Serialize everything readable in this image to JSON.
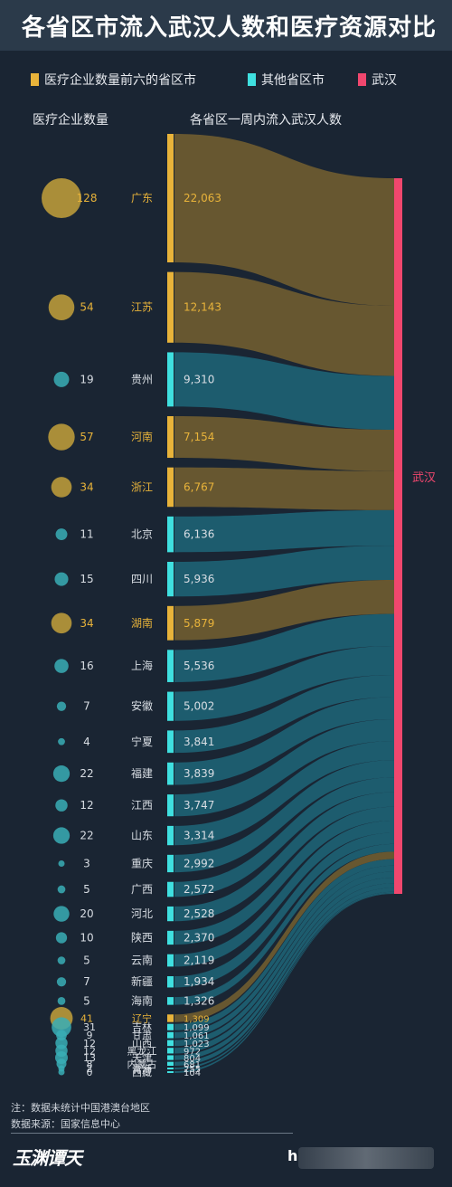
{
  "title": "各省区市流入武汉人数和医疗资源对比",
  "legend": [
    {
      "label": "医疗企业数量前六的省区市",
      "color": "#e8b33a"
    },
    {
      "label": "其他省区市",
      "color": "#3fe0e0"
    },
    {
      "label": "武汉",
      "color": "#f0476e"
    }
  ],
  "headers": {
    "medical": "医疗企业数量",
    "inflow": "各省区一周内流入武汉人数"
  },
  "target_label": "武汉",
  "notes": {
    "note": "注：数据未统计中国港澳台地区",
    "source": "数据来源：国家信息中心"
  },
  "brand": "玉渊谭天",
  "footer_fragment": "h",
  "colors": {
    "background": "#1a2533",
    "top6": "#e8b33a",
    "top6_flow": "#6b5a30",
    "other": "#3fe0e0",
    "other_flow": "#1e5f72",
    "wuhan": "#f0476e",
    "text": "#d8dde3"
  },
  "chart_data": {
    "type": "sankey",
    "columns": [
      "医疗企业数量",
      "省区市",
      "各省区一周内流入武汉人数"
    ],
    "target": "武汉",
    "rows": [
      {
        "province": "广东",
        "medical": 128,
        "inflow": 22063,
        "top6": true
      },
      {
        "province": "江苏",
        "medical": 54,
        "inflow": 12143,
        "top6": true
      },
      {
        "province": "贵州",
        "medical": 19,
        "inflow": 9310,
        "top6": false
      },
      {
        "province": "河南",
        "medical": 57,
        "inflow": 7154,
        "top6": true
      },
      {
        "province": "浙江",
        "medical": 34,
        "inflow": 6767,
        "top6": true
      },
      {
        "province": "北京",
        "medical": 11,
        "inflow": 6136,
        "top6": false
      },
      {
        "province": "四川",
        "medical": 15,
        "inflow": 5936,
        "top6": false
      },
      {
        "province": "湖南",
        "medical": 34,
        "inflow": 5879,
        "top6": true
      },
      {
        "province": "上海",
        "medical": 16,
        "inflow": 5536,
        "top6": false
      },
      {
        "province": "安徽",
        "medical": 7,
        "inflow": 5002,
        "top6": false
      },
      {
        "province": "宁夏",
        "medical": 4,
        "inflow": 3841,
        "top6": false
      },
      {
        "province": "福建",
        "medical": 22,
        "inflow": 3839,
        "top6": false
      },
      {
        "province": "江西",
        "medical": 12,
        "inflow": 3747,
        "top6": false
      },
      {
        "province": "山东",
        "medical": 22,
        "inflow": 3314,
        "top6": false
      },
      {
        "province": "重庆",
        "medical": 3,
        "inflow": 2992,
        "top6": false
      },
      {
        "province": "广西",
        "medical": 5,
        "inflow": 2572,
        "top6": false
      },
      {
        "province": "河北",
        "medical": 20,
        "inflow": 2528,
        "top6": false
      },
      {
        "province": "陕西",
        "medical": 10,
        "inflow": 2370,
        "top6": false
      },
      {
        "province": "云南",
        "medical": 5,
        "inflow": 2119,
        "top6": false
      },
      {
        "province": "新疆",
        "medical": 7,
        "inflow": 1934,
        "top6": false
      },
      {
        "province": "海南",
        "medical": 5,
        "inflow": 1326,
        "top6": false
      },
      {
        "province": "辽宁",
        "medical": 41,
        "inflow": 1309,
        "top6": true
      },
      {
        "province": "吉林",
        "medical": 31,
        "inflow": 1099,
        "top6": false
      },
      {
        "province": "甘肃",
        "medical": 9,
        "inflow": 1061,
        "top6": false
      },
      {
        "province": "山西",
        "medical": 12,
        "inflow": 1023,
        "top6": false
      },
      {
        "province": "黑龙江",
        "medical": 12,
        "inflow": 972,
        "top6": false
      },
      {
        "province": "天津",
        "medical": 13,
        "inflow": 804,
        "top6": false
      },
      {
        "province": "内蒙古",
        "medical": 8,
        "inflow": 681,
        "top6": false
      },
      {
        "province": "青海",
        "medical": 2,
        "inflow": 255,
        "top6": false
      },
      {
        "province": "西藏",
        "medical": 0,
        "inflow": 104,
        "top6": false
      }
    ]
  }
}
